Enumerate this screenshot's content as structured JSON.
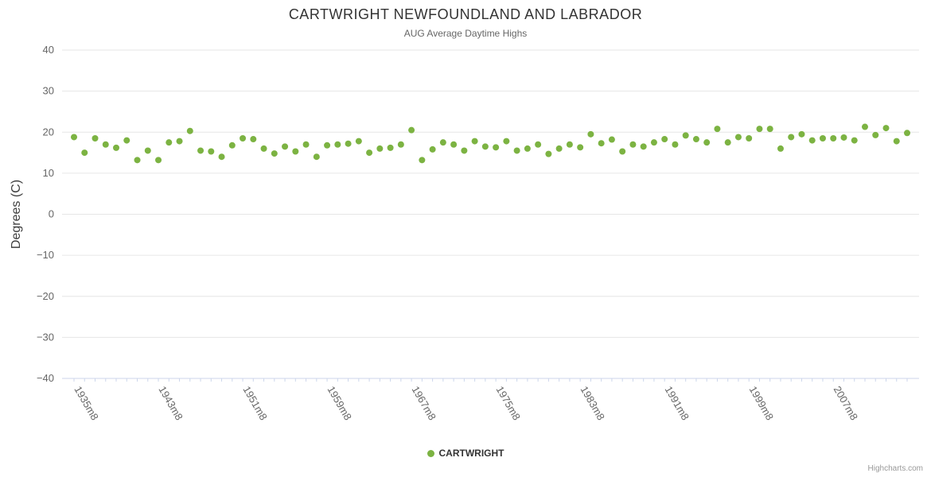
{
  "title": "CARTWRIGHT NEWFOUNDLAND AND LABRADOR",
  "subtitle": "AUG Average Daytime Highs",
  "credits": "Highcharts.com",
  "colors": {
    "point": "#7cb342",
    "grid": "#e6e6e6",
    "axis_line": "#ccd6eb",
    "title": "#333333",
    "subtitle": "#666666",
    "tick_label": "#666666",
    "axis_title": "#3e3e3e"
  },
  "chart_data": {
    "type": "scatter",
    "title": "CARTWRIGHT NEWFOUNDLAND AND LABRADOR",
    "subtitle": "AUG Average Daytime Highs",
    "xlabel": "",
    "ylabel": "Degrees (C)",
    "ylim": [
      -40,
      40
    ],
    "y_ticks": [
      40,
      30,
      20,
      10,
      0,
      -10,
      -20,
      -30,
      -40
    ],
    "grid": true,
    "legend_position": "bottom",
    "x_range": [
      1935,
      2014
    ],
    "x_step": 1,
    "x_tick_years": [
      1935,
      1943,
      1951,
      1959,
      1967,
      1975,
      1983,
      1991,
      1999,
      2007
    ],
    "x_tick_labels": [
      "1935m8",
      "1943m8",
      "1951m8",
      "1959m8",
      "1967m8",
      "1975m8",
      "1983m8",
      "1991m8",
      "1999m8",
      "2007m8"
    ],
    "series": [
      {
        "name": "CARTWRIGHT",
        "values": [
          18.8,
          15.0,
          18.5,
          17.0,
          16.2,
          18.0,
          13.2,
          15.5,
          13.2,
          17.5,
          17.8,
          20.3,
          15.5,
          15.3,
          14.0,
          16.8,
          18.5,
          18.3,
          16.0,
          14.8,
          16.5,
          15.3,
          17.0,
          14.0,
          16.8,
          17.0,
          17.2,
          17.8,
          15.0,
          16.0,
          16.2,
          17.0,
          20.5,
          13.2,
          15.8,
          17.5,
          17.0,
          15.5,
          17.8,
          16.5,
          16.3,
          17.8,
          15.5,
          16.0,
          17.0,
          14.7,
          16.0,
          17.0,
          16.3,
          19.5,
          17.3,
          18.2,
          15.3,
          17.0,
          16.5,
          17.5,
          18.3,
          17.0,
          19.2,
          18.3,
          17.5,
          20.8,
          17.5,
          18.8,
          18.5,
          20.8,
          20.8,
          16.0,
          18.8,
          19.5,
          18.0,
          18.5,
          18.5,
          18.7,
          18.0,
          21.3,
          19.3,
          21.0,
          17.8,
          19.8
        ]
      }
    ]
  }
}
